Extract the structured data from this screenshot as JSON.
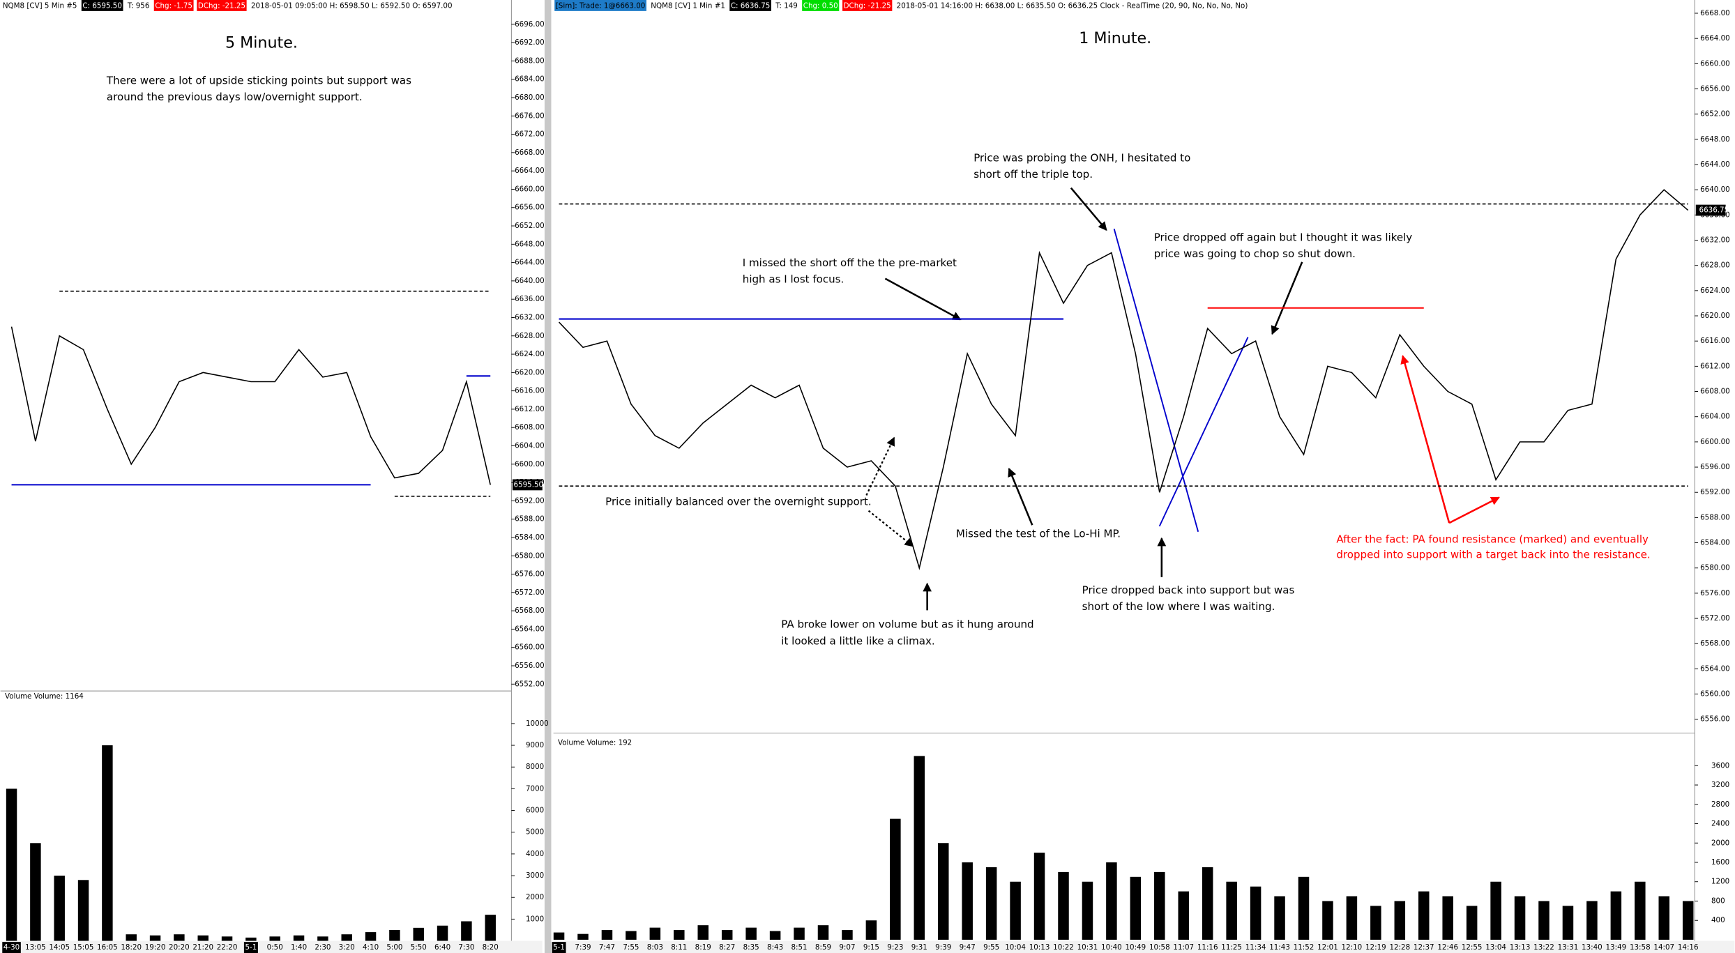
{
  "chart_data": [
    {
      "type": "line",
      "title": "5 Minute.",
      "header": [
        {
          "text": "NQM8 [CV]  5 Min  #5"
        },
        {
          "text": "C: 6595.50",
          "bg": "#000000",
          "fg": "#ffffff"
        },
        {
          "text": "T: 956"
        },
        {
          "text": "Chg: -1.75",
          "bg": "#ff0000",
          "fg": "#ffffff"
        },
        {
          "text": "DChg: -21.25",
          "bg": "#ff0000",
          "fg": "#ffffff"
        },
        {
          "text": "2018-05-01 09:05:00 H: 6598.50 L: 6592.50 O: 6597.00"
        }
      ],
      "annotations": [
        {
          "lines": [
            "There were a lot of upside sticking points but support was",
            "around the previous days low/overnight support."
          ],
          "color": "#000000"
        }
      ],
      "categories": [
        "4-30",
        "13:05",
        "14:05",
        "15:05",
        "16:05",
        "18:20",
        "19:20",
        "20:20",
        "21:20",
        "22:20",
        "5-1",
        "0:50",
        "1:40",
        "2:30",
        "3:20",
        "4:10",
        "5:00",
        "5:50",
        "6:40",
        "7:30",
        "8:20"
      ],
      "values": [
        6630,
        6605,
        6628,
        6625,
        6612,
        6600,
        6608,
        6618,
        6620,
        6619,
        6618,
        6618,
        6625,
        6619,
        6620,
        6606,
        6597,
        6598,
        6603,
        6618,
        6595.5
      ],
      "color": "#000000",
      "last_value_label": "6595.50",
      "ylim": [
        6550.5,
        6701.3
      ],
      "yticks": [
        {
          "value": 6552,
          "label": "6552.00"
        },
        {
          "value": 6556,
          "label": "6556.00"
        },
        {
          "value": 6560,
          "label": "6560.00"
        },
        {
          "value": 6564,
          "label": "6564.00"
        },
        {
          "value": 6568,
          "label": "6568.00"
        },
        {
          "value": 6572,
          "label": "6572.00"
        },
        {
          "value": 6576,
          "label": "6576.00"
        },
        {
          "value": 6580,
          "label": "6580.00"
        },
        {
          "value": 6584,
          "label": "6584.00"
        },
        {
          "value": 6588,
          "label": "6588.00"
        },
        {
          "value": 6592,
          "label": "6592.00"
        },
        {
          "value": 6596,
          "label": "6596.00"
        },
        {
          "value": 6600,
          "label": "6600.00"
        },
        {
          "value": 6604,
          "label": "6604.00"
        },
        {
          "value": 6608,
          "label": "6608.00"
        },
        {
          "value": 6612,
          "label": "6612.00"
        },
        {
          "value": 6616,
          "label": "6616.00"
        },
        {
          "value": 6620,
          "label": "6620.00"
        },
        {
          "value": 6624,
          "label": "6624.00"
        },
        {
          "value": 6628,
          "label": "6628.00"
        },
        {
          "value": 6632,
          "label": "6632.00"
        },
        {
          "value": 6636,
          "label": "6636.00"
        },
        {
          "value": 6640,
          "label": "6640.00"
        },
        {
          "value": 6644,
          "label": "6644.00"
        },
        {
          "value": 6648,
          "label": "6648.00"
        },
        {
          "value": 6652,
          "label": "6652.00"
        },
        {
          "value": 6656,
          "label": "6656.00"
        },
        {
          "value": 6660,
          "label": "6660.00"
        },
        {
          "value": 6664,
          "label": "6664.00"
        },
        {
          "value": 6668,
          "label": "6668.00"
        },
        {
          "value": 6672,
          "label": "6672.00"
        },
        {
          "value": 6676,
          "label": "6676.00"
        },
        {
          "value": 6680,
          "label": "6680.00"
        },
        {
          "value": 6684,
          "label": "6684.00"
        },
        {
          "value": 6688,
          "label": "6688.00"
        },
        {
          "value": 6692,
          "label": "6692.00"
        },
        {
          "value": 6696,
          "label": "6696.00"
        }
      ],
      "levels": [
        {
          "value": 6637.75,
          "color": "#000000",
          "dashed": true,
          "from": 2,
          "to": 20
        },
        {
          "value": 6595.5,
          "color": "#0000cc",
          "dashed": false,
          "from": 0,
          "to": 15
        },
        {
          "value": 6619.25,
          "color": "#0000cc",
          "dashed": false,
          "from": 19,
          "to": 20
        },
        {
          "value": 6593,
          "color": "#000000",
          "dashed": true,
          "from": 16,
          "to": 20
        }
      ]
    },
    {
      "type": "bar",
      "title": "Volume  Volume: 1164",
      "values": [
        7000,
        4500,
        3000,
        2800,
        9000,
        300,
        250,
        300,
        250,
        200,
        150,
        200,
        250,
        200,
        300,
        400,
        500,
        600,
        700,
        900,
        1200
      ],
      "color": "#000000",
      "ylim": [
        0,
        11500
      ],
      "yticks": [
        1000,
        2000,
        3000,
        4000,
        5000,
        6000,
        7000,
        8000,
        9000,
        10000
      ]
    },
    {
      "type": "line",
      "title": "1 Minute.",
      "header": [
        {
          "text": "[Sim]: Trade: 1@6663.00",
          "bg": "#1e7bc8",
          "fg": "#000000"
        },
        {
          "text": "NQM8 [CV]  1 Min  #1"
        },
        {
          "text": "C: 6636.75",
          "bg": "#000000",
          "fg": "#ffffff"
        },
        {
          "text": "T: 149"
        },
        {
          "text": "Chg: 0.50",
          "bg": "#00dd00",
          "fg": "#ffffff"
        },
        {
          "text": "DChg: -21.25",
          "bg": "#ff0000",
          "fg": "#ffffff"
        },
        {
          "text": "2018-05-01 14:16:00 H: 6638.00 L: 6635.50 O: 6636.25 Clock - RealTime  (20, 90, No, No, No, No)"
        }
      ],
      "annotations": [
        {
          "lines": [
            "Price was probing the ONH, I hesitated to",
            "short off the triple top."
          ],
          "color": "#000000"
        },
        {
          "lines": [
            "I missed the short off the the pre-market",
            "high as I lost focus."
          ],
          "color": "#000000"
        },
        {
          "lines": [
            "Price dropped off again but I thought it was likely",
            "price was going to chop so shut down."
          ],
          "color": "#000000"
        },
        {
          "lines": [
            "Price initially balanced over the overnight support."
          ],
          "color": "#000000"
        },
        {
          "lines": [
            "Missed the test of the Lo-Hi MP."
          ],
          "color": "#000000"
        },
        {
          "lines": [
            "Price dropped back into support but was",
            "short of the low where I was waiting."
          ],
          "color": "#000000"
        },
        {
          "lines": [
            "PA broke lower on volume but as it hung around",
            "it looked a little like a climax."
          ],
          "color": "#000000"
        },
        {
          "lines": [
            "After the fact:  PA found resistance (marked) and eventually",
            "dropped into support with a target back into the resistance."
          ],
          "color": "#ff0000"
        }
      ],
      "categories": [
        "5-1",
        "7:39",
        "7:47",
        "7:55",
        "8:03",
        "8:11",
        "8:19",
        "8:27",
        "8:35",
        "8:43",
        "8:51",
        "8:59",
        "9:07",
        "9:15",
        "9:23",
        "9:31",
        "9:39",
        "9:47",
        "9:55",
        "10:04",
        "10:13",
        "10:22",
        "10:31",
        "10:40",
        "10:49",
        "10:58",
        "11:07",
        "11:16",
        "11:25",
        "11:34",
        "11:43",
        "11:52",
        "12:01",
        "12:10",
        "12:19",
        "12:28",
        "12:37",
        "12:46",
        "12:55",
        "13:04",
        "13:13",
        "13:22",
        "13:31",
        "13:40",
        "13:49",
        "13:58",
        "14:07",
        "14:16"
      ],
      "values": [
        6619,
        6615,
        6616,
        6606,
        6601,
        6599,
        6603,
        6606,
        6609,
        6607,
        6609,
        6599,
        6596,
        6597,
        6593,
        6580,
        6596,
        6614,
        6606,
        6601,
        6630,
        6622,
        6628,
        6630,
        6614,
        6592,
        6604,
        6618,
        6614,
        6616,
        6604,
        6598,
        6612,
        6611,
        6607,
        6617,
        6612,
        6608,
        6606,
        6594,
        6600,
        6600,
        6605,
        6606,
        6629,
        6636,
        6640,
        6636.75
      ],
      "color": "#000000",
      "last_value_label": "6636.75",
      "ylim": [
        6554,
        6670.1
      ],
      "yticks": [
        {
          "value": 6556,
          "label": "6556.00"
        },
        {
          "value": 6560,
          "label": "6560.00"
        },
        {
          "value": 6564,
          "label": "6564.00"
        },
        {
          "value": 6568,
          "label": "6568.00"
        },
        {
          "value": 6572,
          "label": "6572.00"
        },
        {
          "value": 6576,
          "label": "6576.00"
        },
        {
          "value": 6580,
          "label": "6580.00"
        },
        {
          "value": 6584,
          "label": "6584.00"
        },
        {
          "value": 6588,
          "label": "6588.00"
        },
        {
          "value": 6592,
          "label": "6592.00"
        },
        {
          "value": 6596,
          "label": "6596.00"
        },
        {
          "value": 6600,
          "label": "6600.00"
        },
        {
          "value": 6604,
          "label": "6604.00"
        },
        {
          "value": 6608,
          "label": "6608.00"
        },
        {
          "value": 6612,
          "label": "6612.00"
        },
        {
          "value": 6616,
          "label": "6616.00"
        },
        {
          "value": 6620,
          "label": "6620.00"
        },
        {
          "value": 6624,
          "label": "6624.00"
        },
        {
          "value": 6628,
          "label": "6628.00"
        },
        {
          "value": 6632,
          "label": "6632.00"
        },
        {
          "value": 6636,
          "label": "6636.00"
        },
        {
          "value": 6640,
          "label": "6640.00"
        },
        {
          "value": 6644,
          "label": "6644.00"
        },
        {
          "value": 6648,
          "label": "6648.00"
        },
        {
          "value": 6652,
          "label": "6652.00"
        },
        {
          "value": 6656,
          "label": "6656.00"
        },
        {
          "value": 6660,
          "label": "6660.00"
        },
        {
          "value": 6664,
          "label": "6664.00"
        },
        {
          "value": 6668,
          "label": "6668.00"
        }
      ],
      "levels": [
        {
          "value": 6637.75,
          "color": "#000000",
          "dashed": true,
          "from": 0,
          "to": 47
        },
        {
          "value": 6593,
          "color": "#000000",
          "dashed": true,
          "from": 0,
          "to": 47
        },
        {
          "value": 6619.5,
          "color": "#0000cc",
          "dashed": false,
          "from": 0,
          "to": 21
        },
        {
          "value": 6621.25,
          "color": "#ff0000",
          "dashed": false,
          "from": 27,
          "to": 36
        }
      ]
    },
    {
      "type": "bar",
      "title": "Volume  Volume: 192",
      "values": [
        150,
        120,
        200,
        180,
        250,
        200,
        300,
        200,
        250,
        180,
        250,
        300,
        200,
        400,
        2500,
        3800,
        2000,
        1600,
        1500,
        1200,
        1800,
        1400,
        1200,
        1600,
        1300,
        1400,
        1000,
        1500,
        1200,
        1100,
        900,
        1300,
        800,
        900,
        700,
        800,
        1000,
        900,
        700,
        1200,
        900,
        800,
        700,
        800,
        1000,
        1200,
        900,
        800
      ],
      "color": "#000000",
      "ylim": [
        0,
        4230
      ],
      "yticks": [
        400,
        800,
        1200,
        1600,
        2000,
        2400,
        2800,
        3200,
        3600
      ]
    }
  ]
}
